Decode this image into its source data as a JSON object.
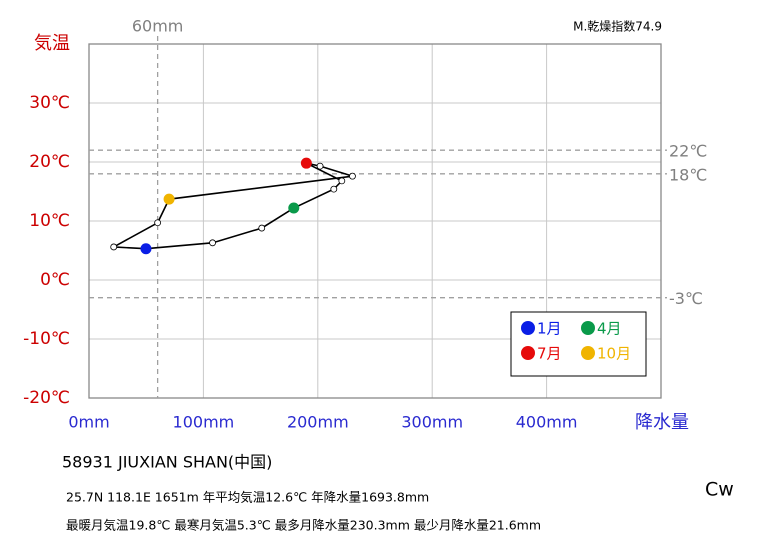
{
  "chart_data": {
    "type": "hythergraph",
    "index_text": "M.乾燥指数74.9",
    "y_label": "気温",
    "x_label": "降水量",
    "x": [
      49.8,
      108,
      151,
      179,
      214,
      221,
      190,
      202,
      230.3,
      70,
      60,
      21.6
    ],
    "values": [
      5.3,
      6.3,
      8.8,
      12.2,
      15.4,
      16.8,
      19.8,
      19.3,
      17.6,
      13.7,
      9.7,
      5.6
    ],
    "xlim": [
      0,
      500
    ],
    "ylim": [
      -20,
      40
    ],
    "xticks": [
      {
        "value": 0,
        "label": "0mm"
      },
      {
        "value": 100,
        "label": "100mm"
      },
      {
        "value": 200,
        "label": "200mm"
      },
      {
        "value": 300,
        "label": "300mm"
      },
      {
        "value": 400,
        "label": "400mm"
      }
    ],
    "yticks": [
      {
        "value": -20,
        "label": "-20℃"
      },
      {
        "value": -10,
        "label": "-10℃"
      },
      {
        "value": 0,
        "label": "0℃"
      },
      {
        "value": 10,
        "label": "10℃"
      },
      {
        "value": 20,
        "label": "20℃"
      },
      {
        "value": 30,
        "label": "30℃"
      }
    ],
    "grid": true,
    "line_color": "#000000",
    "y_ref_lines": [
      {
        "value": 22,
        "label": "22℃"
      },
      {
        "value": 18,
        "label": "18℃"
      },
      {
        "value": -3,
        "label": "-3℃"
      }
    ],
    "x_ref_lines": [
      {
        "value": 60,
        "label": "60mm"
      }
    ],
    "legend": [
      {
        "name": "1月",
        "color": "#0a1ee6"
      },
      {
        "name": "4月",
        "color": "#0a9a4a"
      },
      {
        "name": "7月",
        "color": "#e60a0a"
      },
      {
        "name": "10月",
        "color": "#f0b400"
      }
    ],
    "station": "58931  JIUXIAN SHAN(中国)",
    "info_line1": "25.7N  118.1E  1651m  年平均気温12.6℃ 年降水量1693.8mm",
    "info_line2": "最暖月気温19.8℃ 最寒月気温5.3℃ 最多月降水量230.3mm 最少月降水量21.6mm",
    "climate_class": "Cw"
  }
}
